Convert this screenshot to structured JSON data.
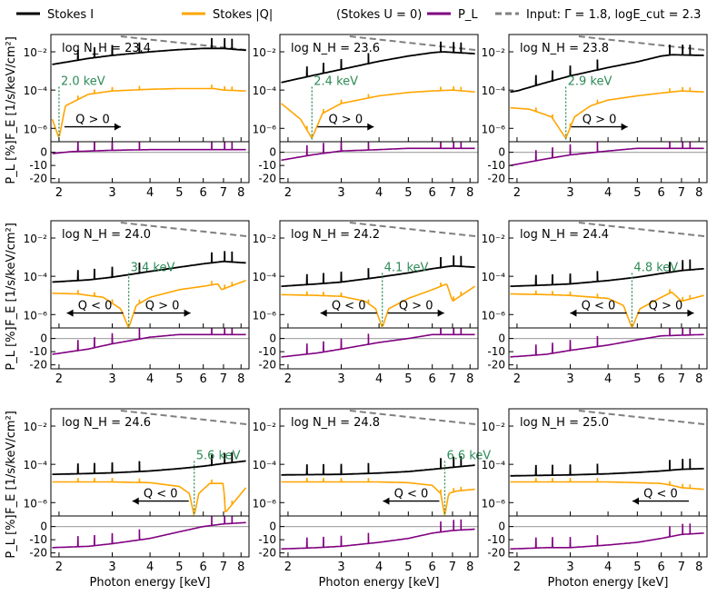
{
  "legend": {
    "items": [
      {
        "label": "Stokes I",
        "color": "#000000",
        "style": "solid"
      },
      {
        "label": "Stokes |Q|",
        "color": "#ffa500",
        "style": "solid"
      },
      {
        "label": "(Stokes U = 0)",
        "color": "",
        "style": "none"
      },
      {
        "label": "P_L",
        "color": "#800080",
        "style": "solid"
      },
      {
        "label": "Input: Γ = 1.8, logE_cut = 2.3",
        "color": "#808080",
        "style": "dashed"
      }
    ]
  },
  "axes": {
    "xlabel": "Photon energy [keV]",
    "ylabel_top": "F_E [1/s/keV/cm²]",
    "ylabel_bottom": "P_L [%]",
    "xscale": "log",
    "xlim": [
      1.88,
      8.5
    ],
    "xticks": [
      "2",
      "3",
      "4",
      "5",
      "6",
      "7",
      "8"
    ],
    "top_yscale": "log",
    "top_ylim": [
      2e-07,
      0.08
    ],
    "top_yticks": [
      "10⁻²",
      "10⁻⁴",
      "10⁻⁶"
    ],
    "bottom_ylim": [
      -23,
      8
    ],
    "bottom_yticks": [
      "0",
      "-10",
      "-20"
    ],
    "zero_line_color": "#aaaaaa",
    "vline_color": "#2e8b57"
  },
  "chart_data": [
    {
      "type": "line",
      "nh_label": "log N_H = 23.4",
      "lognh": 23.4,
      "cross_energy": 2.0,
      "cross_label": "2.0 keV",
      "arrows": [
        {
          "dir": "right",
          "label": "Q > 0"
        }
      ],
      "series": [
        {
          "name": "Stokes I",
          "x": [
            1.9,
            2.0,
            2.5,
            3.0,
            4.0,
            5.0,
            6.0,
            7.0,
            8.3
          ],
          "y": [
            0.0022,
            0.0025,
            0.0045,
            0.0065,
            0.01,
            0.013,
            0.015,
            0.015,
            0.012
          ]
        },
        {
          "name": "Stokes |Q|",
          "x": [
            1.9,
            2.0,
            2.1,
            2.5,
            3.0,
            4.0,
            5.0,
            6.5,
            7.0,
            8.3
          ],
          "y": [
            3e-06,
            3e-07,
            1.5e-05,
            6e-05,
            9e-05,
            0.00011,
            0.00012,
            0.00012,
            0.0001,
            9e-05
          ]
        },
        {
          "name": "P_L",
          "x": [
            1.9,
            2.2,
            3.0,
            4.0,
            8.3
          ],
          "y": [
            -1,
            0.5,
            1.5,
            2,
            2
          ]
        }
      ]
    },
    {
      "type": "line",
      "nh_label": "log N_H = 23.6",
      "lognh": 23.6,
      "cross_energy": 2.4,
      "cross_label": "2.4 keV",
      "arrows": [
        {
          "dir": "right",
          "label": "Q > 0"
        }
      ],
      "series": [
        {
          "name": "Stokes I",
          "x": [
            1.9,
            2.0,
            2.5,
            3.0,
            4.0,
            5.0,
            6.0,
            6.5,
            8.3
          ],
          "y": [
            0.00025,
            0.0003,
            0.00065,
            0.0012,
            0.0032,
            0.006,
            0.009,
            0.01,
            0.008
          ]
        },
        {
          "name": "Stokes |Q|",
          "x": [
            1.9,
            2.2,
            2.4,
            2.6,
            3.0,
            4.0,
            5.0,
            6.0,
            7.0,
            8.3
          ],
          "y": [
            2e-05,
            3e-06,
            3e-07,
            6e-06,
            2e-05,
            5e-05,
            7.5e-05,
            9e-05,
            0.0001,
            8e-05
          ]
        },
        {
          "name": "P_L",
          "x": [
            1.9,
            2.4,
            3.0,
            4.0,
            5.0,
            8.3
          ],
          "y": [
            -6,
            -2,
            1,
            2,
            3,
            3
          ]
        }
      ]
    },
    {
      "type": "line",
      "nh_label": "log N_H = 23.8",
      "lognh": 23.8,
      "cross_energy": 2.9,
      "cross_label": "2.9 keV",
      "arrows": [
        {
          "dir": "right",
          "label": "Q > 0"
        }
      ],
      "series": [
        {
          "name": "Stokes I",
          "x": [
            1.9,
            2.0,
            2.5,
            3.0,
            4.0,
            5.0,
            6.0,
            6.5,
            8.3
          ],
          "y": [
            8e-05,
            9e-05,
            0.00025,
            0.00055,
            0.0015,
            0.003,
            0.006,
            0.007,
            0.0065
          ]
        },
        {
          "name": "Stokes |Q|",
          "x": [
            1.9,
            2.2,
            2.6,
            2.9,
            3.1,
            3.5,
            4.0,
            5.0,
            6.0,
            7.0,
            8.3
          ],
          "y": [
            1.2e-05,
            1e-05,
            4e-06,
            3e-07,
            4e-06,
            1.5e-05,
            3e-05,
            5e-05,
            7e-05,
            9e-05,
            8e-05
          ]
        },
        {
          "name": "P_L",
          "x": [
            1.9,
            2.5,
            3.0,
            4.0,
            5.0,
            8.3
          ],
          "y": [
            -10,
            -5,
            -2,
            1,
            3,
            3
          ]
        }
      ]
    },
    {
      "type": "line",
      "nh_label": "log N_H = 24.0",
      "lognh": 24.0,
      "cross_energy": 3.4,
      "cross_label": "3.4 keV",
      "arrows": [
        {
          "dir": "left",
          "label": "Q < 0"
        },
        {
          "dir": "right",
          "label": "Q > 0"
        }
      ],
      "series": [
        {
          "name": "Stokes I",
          "x": [
            1.9,
            2.5,
            3.0,
            4.0,
            5.0,
            6.0,
            7.0,
            8.3
          ],
          "y": [
            5e-05,
            6.5e-05,
            9e-05,
            0.00018,
            0.0003,
            0.00045,
            0.0006,
            0.0005
          ]
        },
        {
          "name": "Stokes |Q|",
          "x": [
            1.9,
            2.3,
            2.8,
            3.2,
            3.4,
            3.6,
            4.0,
            5.0,
            6.0,
            6.7,
            6.9,
            8.3
          ],
          "y": [
            1.3e-05,
            1.2e-05,
            8e-06,
            2e-06,
            2e-07,
            3e-06,
            8e-06,
            2e-05,
            3e-05,
            4e-05,
            2e-05,
            6e-05
          ]
        },
        {
          "name": "P_L",
          "x": [
            1.9,
            2.5,
            3.0,
            4.0,
            5.0,
            6.0,
            8.3
          ],
          "y": [
            -12,
            -8,
            -4,
            1,
            3,
            3,
            3
          ]
        }
      ]
    },
    {
      "type": "line",
      "nh_label": "log N_H = 24.2",
      "lognh": 24.2,
      "cross_energy": 4.1,
      "cross_label": "4.1 keV",
      "arrows": [
        {
          "dir": "left",
          "label": "Q < 0"
        },
        {
          "dir": "right",
          "label": "Q > 0"
        }
      ],
      "series": [
        {
          "name": "Stokes I",
          "x": [
            1.9,
            2.5,
            3.0,
            4.0,
            5.0,
            6.0,
            7.0,
            8.3
          ],
          "y": [
            3e-05,
            4e-05,
            5e-05,
            9e-05,
            0.00015,
            0.00025,
            0.00035,
            0.0003
          ]
        },
        {
          "name": "Stokes |Q|",
          "x": [
            1.9,
            2.5,
            3.0,
            3.6,
            3.9,
            4.1,
            4.3,
            5.0,
            6.0,
            6.7,
            7.0,
            8.3
          ],
          "y": [
            1.1e-05,
            1e-05,
            9e-06,
            5e-06,
            2e-06,
            2e-07,
            2e-06,
            7e-06,
            2e-05,
            4e-05,
            5e-06,
            3e-05
          ]
        },
        {
          "name": "P_L",
          "x": [
            1.9,
            2.5,
            3.0,
            4.0,
            5.0,
            6.0,
            8.3
          ],
          "y": [
            -14,
            -11,
            -8,
            -3,
            0,
            3,
            3
          ]
        }
      ]
    },
    {
      "type": "line",
      "nh_label": "log N_H = 24.4",
      "lognh": 24.4,
      "cross_energy": 4.8,
      "cross_label": "4.8 keV",
      "arrows": [
        {
          "dir": "left",
          "label": "Q < 0"
        },
        {
          "dir": "right",
          "label": "Q > 0"
        }
      ],
      "series": [
        {
          "name": "Stokes I",
          "x": [
            1.9,
            2.5,
            3.0,
            4.0,
            5.0,
            6.0,
            7.0,
            8.3
          ],
          "y": [
            3e-05,
            3.5e-05,
            4e-05,
            6e-05,
            9e-05,
            0.00014,
            0.0002,
            0.00025
          ]
        },
        {
          "name": "Stokes |Q|",
          "x": [
            1.9,
            2.5,
            3.0,
            4.0,
            4.5,
            4.8,
            5.1,
            6.0,
            6.5,
            7.0,
            8.3
          ],
          "y": [
            1.2e-05,
            1.1e-05,
            1e-05,
            7e-06,
            3e-06,
            2e-07,
            2e-06,
            8e-06,
            1.5e-05,
            5e-06,
            1e-05
          ]
        },
        {
          "name": "P_L",
          "x": [
            1.9,
            2.5,
            3.0,
            4.0,
            5.0,
            6.0,
            8.3
          ],
          "y": [
            -14,
            -12,
            -9,
            -5,
            -1,
            2,
            3
          ]
        }
      ]
    },
    {
      "type": "line",
      "nh_label": "log N_H = 24.6",
      "lognh": 24.6,
      "cross_energy": 5.6,
      "cross_label": "5.6 keV",
      "arrows": [
        {
          "dir": "left",
          "label": "Q < 0"
        }
      ],
      "series": [
        {
          "name": "Stokes I",
          "x": [
            1.9,
            2.5,
            3.0,
            4.0,
            5.0,
            6.0,
            7.0,
            8.3
          ],
          "y": [
            3e-05,
            3.3e-05,
            3.6e-05,
            4.5e-05,
            6e-05,
            8e-05,
            0.00011,
            0.00015
          ]
        },
        {
          "name": "Stokes |Q|",
          "x": [
            1.9,
            3.0,
            4.0,
            5.0,
            5.4,
            5.6,
            5.8,
            6.3,
            7.0,
            7.1,
            8.3
          ],
          "y": [
            1.2e-05,
            1.2e-05,
            1.1e-05,
            7e-06,
            3e-06,
            2e-07,
            3e-06,
            1e-05,
            1e-05,
            3e-07,
            6e-06
          ]
        },
        {
          "name": "P_L",
          "x": [
            1.9,
            2.5,
            3.0,
            4.0,
            5.0,
            6.0,
            7.0,
            8.3
          ],
          "y": [
            -16,
            -15,
            -13,
            -9,
            -4,
            0,
            2,
            3
          ]
        }
      ]
    },
    {
      "type": "line",
      "nh_label": "log N_H = 24.8",
      "lognh": 24.8,
      "cross_energy": 6.6,
      "cross_label": "6.6 keV",
      "arrows": [
        {
          "dir": "left",
          "label": "Q < 0"
        }
      ],
      "series": [
        {
          "name": "Stokes I",
          "x": [
            1.9,
            3.0,
            4.0,
            5.0,
            6.0,
            7.0,
            8.3
          ],
          "y": [
            2.8e-05,
            3e-05,
            3.5e-05,
            4.2e-05,
            5.5e-05,
            7e-05,
            9e-05
          ]
        },
        {
          "name": "Stokes |Q|",
          "x": [
            1.9,
            3.0,
            4.0,
            5.0,
            6.0,
            6.4,
            6.6,
            6.8,
            7.2,
            8.3
          ],
          "y": [
            1.2e-05,
            1.2e-05,
            1.2e-05,
            1.1e-05,
            8e-06,
            3e-06,
            2e-07,
            3e-06,
            4e-06,
            5e-06
          ]
        },
        {
          "name": "P_L",
          "x": [
            1.9,
            2.5,
            3.0,
            4.0,
            5.0,
            6.0,
            7.0,
            8.3
          ],
          "y": [
            -17,
            -16,
            -15,
            -12,
            -9,
            -5,
            -3,
            -2
          ]
        }
      ]
    },
    {
      "type": "line",
      "nh_label": "log N_H = 25.0",
      "lognh": 25.0,
      "cross_energy": null,
      "cross_label": "",
      "arrows": [
        {
          "dir": "left",
          "label": "Q < 0"
        }
      ],
      "series": [
        {
          "name": "Stokes I",
          "x": [
            1.9,
            3.0,
            4.0,
            5.0,
            6.0,
            7.0,
            8.3
          ],
          "y": [
            2.5e-05,
            2.8e-05,
            3.2e-05,
            3.8e-05,
            4.5e-05,
            5.5e-05,
            6e-05
          ]
        },
        {
          "name": "Stokes |Q|",
          "x": [
            1.9,
            3.0,
            4.0,
            5.0,
            6.0,
            6.5,
            7.0,
            8.3
          ],
          "y": [
            1.2e-05,
            1.2e-05,
            1.2e-05,
            1.1e-05,
            1e-05,
            8e-06,
            6e-06,
            5e-06
          ]
        },
        {
          "name": "P_L",
          "x": [
            1.9,
            2.5,
            3.0,
            4.0,
            5.0,
            6.0,
            7.0,
            8.3
          ],
          "y": [
            -17,
            -16,
            -16,
            -14,
            -12,
            -9,
            -6,
            -5
          ]
        }
      ]
    }
  ]
}
